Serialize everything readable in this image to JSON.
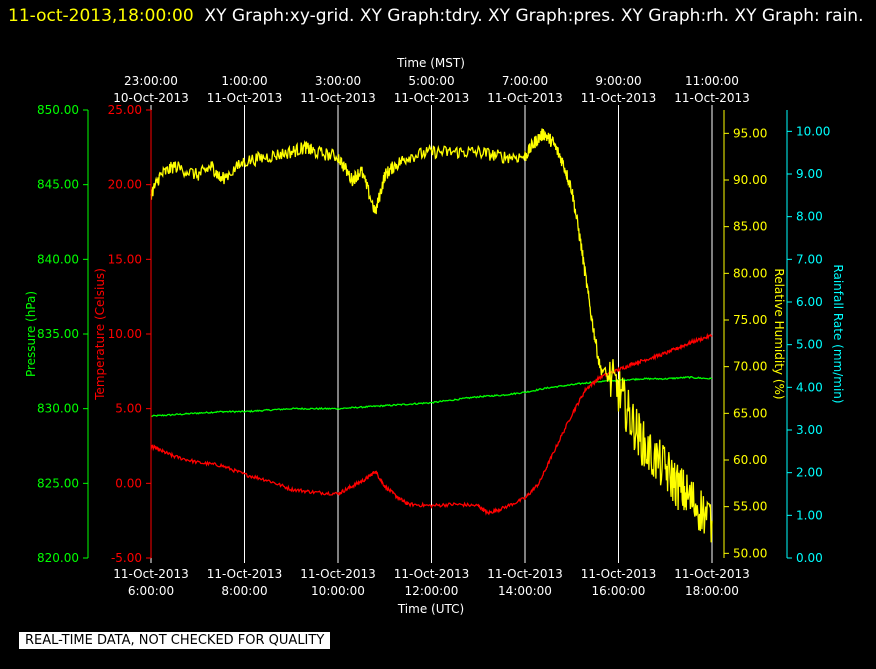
{
  "header": {
    "timestamp": "11-oct-2013,18:00:00",
    "graphs": "XY Graph:xy-grid.  XY Graph:tdry.  XY Graph:pres.  XY Graph:rh.  XY Graph: rain."
  },
  "quality_banner": "REAL-TIME DATA, NOT CHECKED FOR QUALITY",
  "colors": {
    "background": "#000000",
    "grid": "#ffffff",
    "temperature": "#ff0000",
    "pressure": "#00ff00",
    "humidity": "#ffff00",
    "rainfall": "#00ffff"
  },
  "chart_data": {
    "type": "line",
    "grid": "vertical",
    "x_bottom": {
      "label": "Time (UTC)",
      "range": [
        6,
        18
      ],
      "ticks": [
        {
          "value": 6,
          "date": "11-Oct-2013",
          "time": "6:00:00"
        },
        {
          "value": 8,
          "date": "11-Oct-2013",
          "time": "8:00:00"
        },
        {
          "value": 10,
          "date": "11-Oct-2013",
          "time": "10:00:00"
        },
        {
          "value": 12,
          "date": "11-Oct-2013",
          "time": "12:00:00"
        },
        {
          "value": 14,
          "date": "11-Oct-2013",
          "time": "14:00:00"
        },
        {
          "value": 16,
          "date": "11-Oct-2013",
          "time": "16:00:00"
        },
        {
          "value": 18,
          "date": "11-Oct-2013",
          "time": "18:00:00"
        }
      ]
    },
    "x_top": {
      "label": "Time (MST)",
      "ticks": [
        {
          "value": 6,
          "time": "23:00:00",
          "date": "10-Oct-2013"
        },
        {
          "value": 8,
          "time": "1:00:00",
          "date": "11-Oct-2013"
        },
        {
          "value": 10,
          "time": "3:00:00",
          "date": "11-Oct-2013"
        },
        {
          "value": 12,
          "time": "5:00:00",
          "date": "11-Oct-2013"
        },
        {
          "value": 14,
          "time": "7:00:00",
          "date": "11-Oct-2013"
        },
        {
          "value": 16,
          "time": "9:00:00",
          "date": "11-Oct-2013"
        },
        {
          "value": 18,
          "time": "11:00:00",
          "date": "11-Oct-2013"
        }
      ]
    },
    "y_axes": {
      "pressure": {
        "label": "Pressure (hPa)",
        "range": [
          820,
          850
        ],
        "ticks": [
          "820.00",
          "825.00",
          "830.00",
          "835.00",
          "840.00",
          "845.00",
          "850.00"
        ]
      },
      "temperature": {
        "label": "Temperature (Celsius)",
        "range": [
          -5,
          25
        ],
        "ticks": [
          "-5.00",
          "0.00",
          "5.00",
          "10.00",
          "15.00",
          "20.00",
          "25.00"
        ]
      },
      "humidity": {
        "label": "Relative Humidity (%)",
        "range": [
          49.5,
          97.5
        ],
        "ticks": [
          "50.00",
          "55.00",
          "60.00",
          "65.00",
          "70.00",
          "75.00",
          "80.00",
          "85.00",
          "90.00",
          "95.00"
        ]
      },
      "rainfall": {
        "label": "Rainfall Rate (mm/min)",
        "range": [
          0,
          10.5
        ],
        "ticks": [
          "0.00",
          "1.00",
          "2.00",
          "3.00",
          "4.00",
          "5.00",
          "6.00",
          "7.00",
          "8.00",
          "9.00",
          "10.00"
        ]
      }
    },
    "series": [
      {
        "axis": "pressure",
        "x": [
          6.0,
          6.5,
          7.0,
          7.5,
          8.0,
          8.5,
          9.0,
          9.5,
          10.0,
          10.5,
          11.0,
          11.5,
          12.0,
          12.5,
          13.0,
          13.5,
          14.0,
          14.5,
          15.0,
          15.5,
          16.0,
          16.5,
          17.0,
          17.5,
          18.0
        ],
        "y": [
          829.5,
          829.6,
          829.7,
          829.8,
          829.8,
          829.9,
          830.0,
          830.0,
          830.0,
          830.1,
          830.2,
          830.3,
          830.4,
          830.6,
          830.8,
          830.9,
          831.1,
          831.4,
          831.6,
          831.8,
          831.9,
          832.0,
          832.0,
          832.1,
          832.0
        ]
      },
      {
        "axis": "temperature",
        "x": [
          6.0,
          6.2,
          6.5,
          7.0,
          7.5,
          8.0,
          8.5,
          9.0,
          9.5,
          10.0,
          10.3,
          10.6,
          10.8,
          11.0,
          11.3,
          11.5,
          12.0,
          12.5,
          13.0,
          13.2,
          13.5,
          14.0,
          14.3,
          14.6,
          15.0,
          15.3,
          15.6,
          16.0,
          16.3,
          16.6,
          17.0,
          17.3,
          17.6,
          18.0
        ],
        "y": [
          2.5,
          2.2,
          1.8,
          1.4,
          1.2,
          0.6,
          0.2,
          -0.4,
          -0.6,
          -0.7,
          -0.2,
          0.3,
          0.8,
          -0.2,
          -1.0,
          -1.4,
          -1.5,
          -1.4,
          -1.5,
          -2.0,
          -1.7,
          -1.0,
          0.0,
          2.0,
          4.6,
          6.3,
          7.1,
          7.6,
          8.0,
          8.3,
          8.7,
          9.1,
          9.5,
          9.9
        ]
      },
      {
        "axis": "humidity",
        "x": [
          6.0,
          6.2,
          6.5,
          7.0,
          7.3,
          7.5,
          8.0,
          8.5,
          9.0,
          9.3,
          9.5,
          10.0,
          10.3,
          10.5,
          10.8,
          11.0,
          11.2,
          11.5,
          12.0,
          12.5,
          13.0,
          13.5,
          14.0,
          14.2,
          14.4,
          14.6,
          14.8,
          15.0,
          15.2,
          15.4,
          15.6,
          16.0,
          16.3,
          16.6,
          17.0,
          17.3,
          17.6,
          18.0
        ],
        "y": [
          88.5,
          90.5,
          91.5,
          90.5,
          91.5,
          90.0,
          92.0,
          92.5,
          93.0,
          93.5,
          93.0,
          92.5,
          90.0,
          91.0,
          86.5,
          90.5,
          91.5,
          92.5,
          93.0,
          93.0,
          93.0,
          92.5,
          92.5,
          94.0,
          95.0,
          94.0,
          92.0,
          89.0,
          83.0,
          76.0,
          70.0,
          67.5,
          64.0,
          61.0,
          59.0,
          57.0,
          55.5,
          53.5
        ]
      },
      {
        "axis": "rainfall",
        "x": [],
        "y": []
      }
    ]
  }
}
